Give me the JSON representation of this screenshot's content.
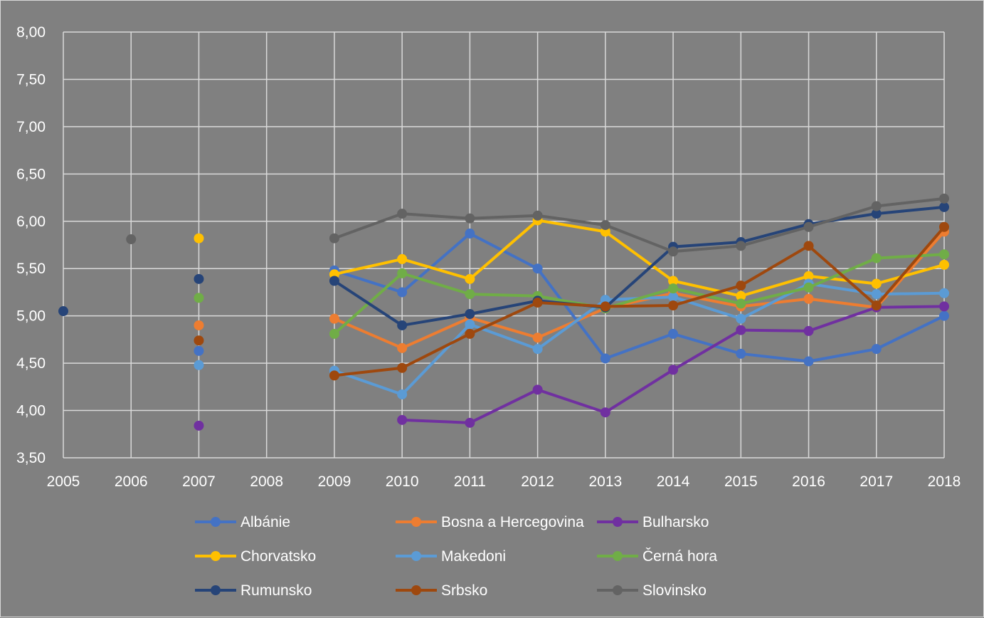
{
  "chart_data": {
    "type": "line",
    "title": "",
    "xlabel": "",
    "ylabel": "",
    "x": [
      "2005",
      "2006",
      "2007",
      "2008",
      "2009",
      "2010",
      "2011",
      "2012",
      "2013",
      "2014",
      "2015",
      "2016",
      "2017",
      "2018"
    ],
    "ylim": [
      3.5,
      8.0
    ],
    "yticks": [
      "3,50",
      "4,00",
      "4,50",
      "5,00",
      "5,50",
      "6,00",
      "6,50",
      "7,00",
      "7,50",
      "8,00"
    ],
    "grid": true,
    "legend_position": "bottom",
    "series": [
      {
        "name": "Albánie",
        "color": "#4472c4",
        "values": [
          null,
          null,
          4.63,
          null,
          5.48,
          5.25,
          5.87,
          5.5,
          4.55,
          4.81,
          4.6,
          4.52,
          4.65,
          5.0
        ]
      },
      {
        "name": "Bosna a Hercegovina",
        "color": "#ed7d31",
        "values": [
          null,
          null,
          4.9,
          null,
          4.97,
          4.66,
          4.98,
          4.77,
          5.08,
          5.24,
          5.1,
          5.18,
          5.09,
          5.89
        ]
      },
      {
        "name": "Bulharsko",
        "color": "#7030a0",
        "values": [
          null,
          null,
          3.84,
          null,
          null,
          3.9,
          3.87,
          4.22,
          3.98,
          4.43,
          4.85,
          4.84,
          5.09,
          5.1
        ]
      },
      {
        "name": "Chorvatsko",
        "color": "#ffc000",
        "values": [
          null,
          null,
          5.82,
          null,
          5.44,
          5.6,
          5.39,
          6.01,
          5.89,
          5.37,
          5.21,
          5.42,
          5.34,
          5.54
        ]
      },
      {
        "name": "Makedoni",
        "color": "#5b9bd5",
        "values": [
          null,
          null,
          4.48,
          null,
          4.42,
          4.17,
          4.91,
          4.65,
          5.17,
          5.2,
          4.97,
          5.34,
          5.23,
          5.24
        ]
      },
      {
        "name": "Černá hora",
        "color": "#70ad47",
        "values": [
          null,
          null,
          5.19,
          null,
          4.81,
          5.45,
          5.23,
          5.21,
          5.08,
          5.29,
          5.13,
          5.3,
          5.61,
          5.65
        ]
      },
      {
        "name": "Rumunsko",
        "color": "#264478",
        "values": [
          5.05,
          null,
          5.39,
          null,
          5.37,
          4.9,
          5.02,
          5.16,
          5.09,
          5.73,
          5.78,
          5.97,
          6.08,
          6.15
        ]
      },
      {
        "name": "Srbsko",
        "color": "#9e480e",
        "values": [
          null,
          null,
          4.74,
          null,
          4.37,
          4.45,
          4.81,
          5.14,
          5.1,
          5.11,
          5.32,
          5.74,
          5.11,
          5.94
        ]
      },
      {
        "name": "Slovinsko",
        "color": "#636363",
        "values": [
          null,
          5.81,
          null,
          null,
          5.82,
          6.08,
          6.03,
          6.06,
          5.96,
          5.68,
          5.74,
          5.94,
          6.16,
          6.24
        ]
      }
    ]
  }
}
